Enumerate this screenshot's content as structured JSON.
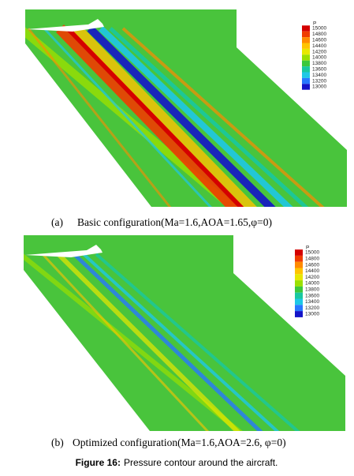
{
  "panels": [
    {
      "legend": {
        "title": "P",
        "levels": [
          15000,
          14800,
          14600,
          14400,
          14200,
          14000,
          13800,
          13600,
          13400,
          13200,
          13000
        ]
      },
      "caption": {
        "label": "(a)",
        "text": "Basic configuration(Ma=1.6,AOA=1.65,φ=0)"
      }
    },
    {
      "legend": {
        "title": "P",
        "levels": [
          15000,
          14800,
          14600,
          14400,
          14200,
          14000,
          13800,
          13600,
          13400,
          13200,
          13000
        ]
      },
      "caption": {
        "label": "(b)",
        "text": "Optimized configuration(Ma=1.6,AOA=2.6, φ=0)"
      }
    }
  ],
  "figure_caption": {
    "label": "Figure 16:",
    "text": "Pressure contour around the aircraft."
  }
}
